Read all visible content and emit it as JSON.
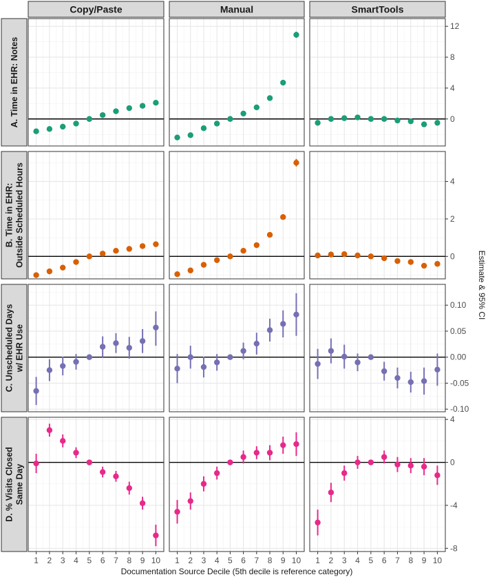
{
  "chart_data": {
    "type": "scatter",
    "xlabel": "Documentation Source Decile (5th decile is reference category)",
    "ylabel": "Estimate & 95% CI",
    "columns": [
      "Copy/Paste",
      "Manual",
      "SmartTools"
    ],
    "x": [
      1,
      2,
      3,
      4,
      5,
      6,
      7,
      8,
      9,
      10
    ],
    "rows": [
      {
        "label": [
          "A. Time in EHR: Notes"
        ],
        "color": "#1b9e77",
        "ylim": [
          -3.5,
          13
        ],
        "yticks": [
          0,
          4,
          8,
          12
        ],
        "panels": [
          {
            "y": [
              -1.6,
              -1.3,
              -1.0,
              -0.6,
              0.0,
              0.5,
              1.0,
              1.4,
              1.7,
              2.1
            ],
            "lo": [
              -1.8,
              -1.5,
              -1.2,
              -0.8,
              0.0,
              0.3,
              0.8,
              1.2,
              1.5,
              1.8
            ],
            "hi": [
              -1.4,
              -1.1,
              -0.8,
              -0.4,
              0.0,
              0.7,
              1.2,
              1.6,
              1.9,
              2.4
            ]
          },
          {
            "y": [
              -2.4,
              -2.1,
              -1.2,
              -0.6,
              0.0,
              0.7,
              1.5,
              2.7,
              4.7,
              10.9
            ],
            "lo": [
              -2.6,
              -2.3,
              -1.4,
              -0.8,
              0.0,
              0.5,
              1.3,
              2.5,
              4.5,
              10.5
            ],
            "hi": [
              -2.2,
              -1.9,
              -1.0,
              -0.4,
              0.0,
              0.9,
              1.7,
              2.9,
              4.9,
              11.3
            ]
          },
          {
            "y": [
              -0.5,
              0.0,
              0.1,
              0.2,
              0.0,
              0.0,
              -0.2,
              -0.3,
              -0.7,
              -0.5
            ],
            "lo": [
              -0.7,
              -0.2,
              -0.1,
              0.0,
              0.0,
              -0.2,
              -0.4,
              -0.5,
              -0.9,
              -0.7
            ],
            "hi": [
              -0.3,
              0.2,
              0.3,
              0.4,
              0.0,
              0.2,
              0.0,
              -0.1,
              -0.5,
              -0.3
            ]
          }
        ]
      },
      {
        "label": [
          "B. Time in EHR:",
          "Outside Scheduled Hours"
        ],
        "color": "#d95f02",
        "ylim": [
          -1.2,
          5.6
        ],
        "yticks": [
          0,
          2,
          4
        ],
        "panels": [
          {
            "y": [
              -1.0,
              -0.8,
              -0.6,
              -0.3,
              0.0,
              0.15,
              0.3,
              0.4,
              0.55,
              0.65
            ],
            "lo": [
              -1.1,
              -0.9,
              -0.7,
              -0.4,
              0.0,
              0.05,
              0.2,
              0.3,
              0.45,
              0.5
            ],
            "hi": [
              -0.9,
              -0.7,
              -0.5,
              -0.2,
              0.0,
              0.25,
              0.4,
              0.5,
              0.65,
              0.8
            ]
          },
          {
            "y": [
              -0.95,
              -0.75,
              -0.45,
              -0.2,
              0.0,
              0.3,
              0.6,
              1.15,
              2.1,
              5.0
            ],
            "lo": [
              -1.05,
              -0.85,
              -0.55,
              -0.3,
              0.0,
              0.2,
              0.5,
              1.05,
              2.0,
              4.8
            ],
            "hi": [
              -0.85,
              -0.65,
              -0.35,
              -0.1,
              0.0,
              0.4,
              0.7,
              1.25,
              2.2,
              5.2
            ]
          },
          {
            "y": [
              0.05,
              0.1,
              0.12,
              0.05,
              0.0,
              -0.1,
              -0.25,
              -0.3,
              -0.5,
              -0.4
            ],
            "lo": [
              -0.05,
              0.0,
              0.02,
              -0.05,
              0.0,
              -0.2,
              -0.35,
              -0.4,
              -0.6,
              -0.5
            ],
            "hi": [
              0.15,
              0.2,
              0.22,
              0.15,
              0.0,
              0.0,
              -0.15,
              -0.2,
              -0.4,
              -0.3
            ]
          }
        ]
      },
      {
        "label": [
          "C. Unscheduled Days",
          "w/ EHR Use"
        ],
        "color": "#7570b3",
        "ylim": [
          -0.105,
          0.14
        ],
        "yticks": [
          -0.1,
          -0.05,
          0.0,
          0.05,
          0.1
        ],
        "yticklabels": [
          "-0.10",
          "-0.05",
          "0.00",
          "0.05",
          "0.10"
        ],
        "panels": [
          {
            "y": [
              -0.065,
              -0.025,
              -0.017,
              -0.009,
              0.0,
              0.02,
              0.027,
              0.018,
              0.031,
              0.057
            ],
            "lo": [
              -0.092,
              -0.046,
              -0.035,
              -0.024,
              0.0,
              0.0,
              0.008,
              -0.003,
              0.008,
              0.022
            ],
            "hi": [
              -0.038,
              -0.004,
              0.001,
              0.006,
              0.0,
              0.04,
              0.046,
              0.039,
              0.054,
              0.088
            ]
          },
          {
            "y": [
              -0.022,
              0.0,
              -0.019,
              -0.01,
              0.0,
              0.012,
              0.026,
              0.052,
              0.064,
              0.082
            ],
            "lo": [
              -0.05,
              -0.022,
              -0.039,
              -0.026,
              0.0,
              -0.004,
              0.005,
              0.03,
              0.038,
              0.041
            ],
            "hi": [
              0.006,
              0.022,
              0.001,
              0.006,
              0.0,
              0.028,
              0.047,
              0.074,
              0.09,
              0.123
            ]
          },
          {
            "y": [
              -0.013,
              0.012,
              0.001,
              -0.01,
              0.0,
              -0.027,
              -0.04,
              -0.048,
              -0.046,
              -0.024
            ],
            "lo": [
              -0.042,
              -0.012,
              -0.022,
              -0.027,
              0.0,
              -0.045,
              -0.06,
              -0.068,
              -0.072,
              -0.055
            ],
            "hi": [
              0.016,
              0.036,
              0.024,
              0.007,
              0.0,
              -0.009,
              -0.02,
              -0.028,
              -0.02,
              0.007
            ]
          }
        ]
      },
      {
        "label": [
          "D. % Visits Closed",
          "Same Day"
        ],
        "color": "#e7298a",
        "ylim": [
          -8.3,
          4.2
        ],
        "yticks": [
          -8,
          -4,
          0,
          4
        ],
        "panels": [
          {
            "y": [
              -0.1,
              3.0,
              2.0,
              0.9,
              0.0,
              -0.9,
              -1.3,
              -2.4,
              -3.8,
              -6.8
            ],
            "lo": [
              -1.0,
              2.4,
              1.4,
              0.4,
              0.0,
              -1.4,
              -1.8,
              -3.0,
              -4.4,
              -7.8
            ],
            "hi": [
              0.8,
              3.6,
              2.6,
              1.4,
              0.0,
              -0.4,
              -0.8,
              -1.8,
              -3.2,
              -5.8
            ]
          },
          {
            "y": [
              -4.6,
              -3.6,
              -2.0,
              -1.0,
              0.0,
              0.5,
              0.9,
              0.9,
              1.6,
              1.7
            ],
            "lo": [
              -5.7,
              -4.4,
              -2.7,
              -1.6,
              0.0,
              -0.1,
              0.3,
              0.2,
              0.8,
              0.6
            ],
            "hi": [
              -3.5,
              -2.8,
              -1.3,
              -0.4,
              0.0,
              1.1,
              1.5,
              1.6,
              2.4,
              2.8
            ]
          },
          {
            "y": [
              -5.6,
              -2.8,
              -1.0,
              0.0,
              0.0,
              0.5,
              -0.2,
              -0.3,
              -0.4,
              -1.2
            ],
            "lo": [
              -6.8,
              -3.7,
              -1.7,
              -0.6,
              0.0,
              -0.1,
              -0.9,
              -1.0,
              -1.2,
              -2.1
            ],
            "hi": [
              -4.4,
              -1.9,
              -0.3,
              0.6,
              0.0,
              1.1,
              0.5,
              0.4,
              0.4,
              -0.3
            ]
          }
        ]
      }
    ]
  }
}
